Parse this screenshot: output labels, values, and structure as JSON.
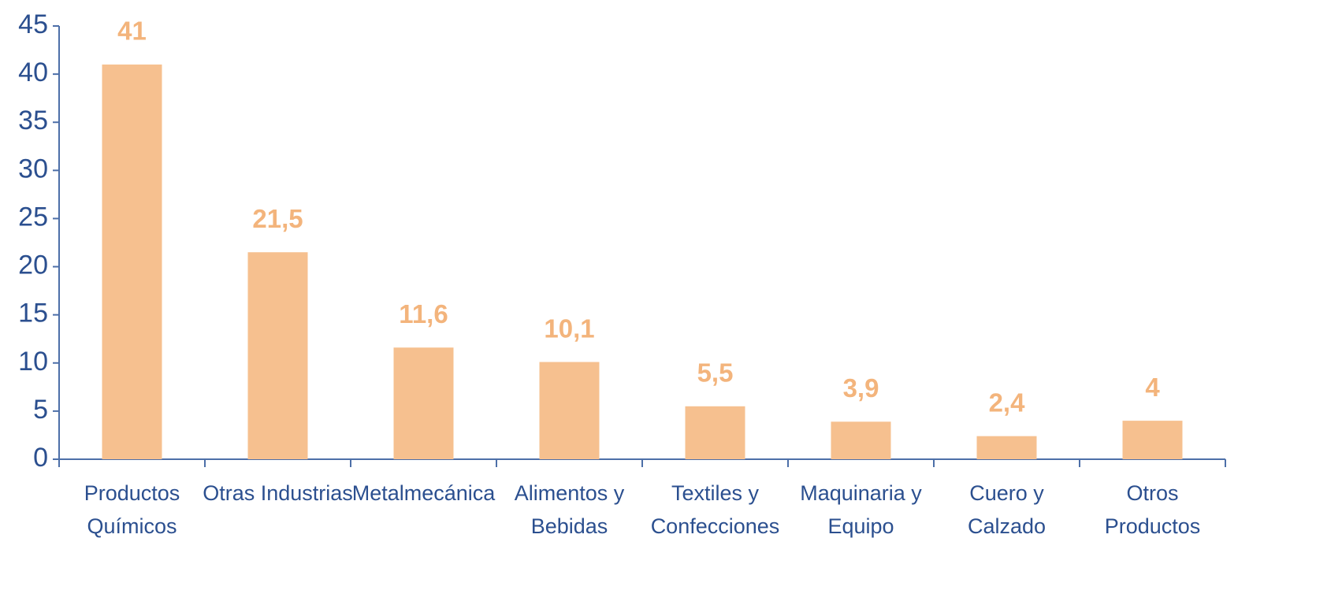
{
  "chart_data": {
    "type": "bar",
    "categories": [
      [
        "Productos",
        "Químicos"
      ],
      [
        "Otras Industrias"
      ],
      [
        "Metalmecánica"
      ],
      [
        "Alimentos y",
        "Bebidas"
      ],
      [
        "Textiles y",
        "Confecciones"
      ],
      [
        "Maquinaria y",
        "Equipo"
      ],
      [
        "Cuero y",
        "Calzado"
      ],
      [
        "Otros",
        "Productos"
      ]
    ],
    "values": [
      41,
      21.5,
      11.6,
      10.1,
      5.5,
      3.9,
      2.4,
      4
    ],
    "value_labels": [
      "41",
      "21,5",
      "11,6",
      "10,1",
      "5,5",
      "3,9",
      "2,4",
      "4"
    ],
    "color": "#f6c08f",
    "ylim": [
      0,
      45
    ],
    "yticks": [
      0,
      5,
      10,
      15,
      20,
      25,
      30,
      35,
      40,
      45
    ],
    "grid": false
  }
}
